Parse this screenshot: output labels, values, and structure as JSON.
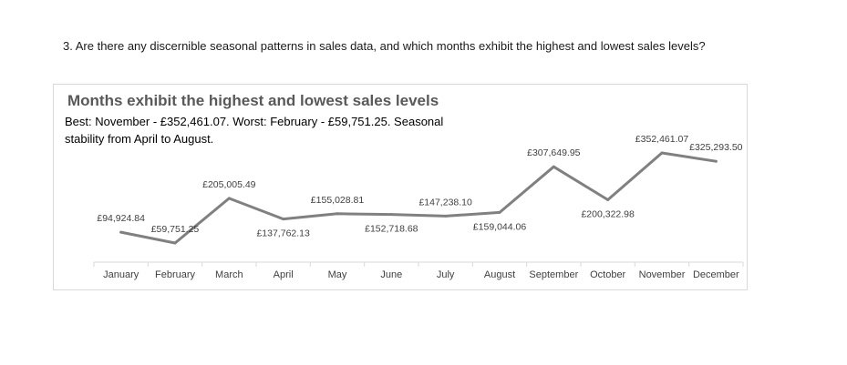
{
  "question": "3. Are there any discernible seasonal patterns in sales data, and which months exhibit the highest and lowest sales levels?",
  "chart_data": {
    "type": "line",
    "title": "Months exhibit the highest and lowest sales levels",
    "subtitle": "Best: November - £352,461.07. Worst: February - £59,751.25. Seasonal stability from April to August.",
    "categories": [
      "January",
      "February",
      "March",
      "April",
      "May",
      "June",
      "July",
      "August",
      "September",
      "October",
      "November",
      "December"
    ],
    "values": [
      94924.84,
      59751.25,
      205005.49,
      137762.13,
      155028.81,
      152718.68,
      147238.1,
      159044.06,
      307649.95,
      200322.98,
      352461.07,
      325293.5
    ],
    "data_labels": [
      "£94,924.84",
      "£59,751.25",
      "£205,005.49",
      "£137,762.13",
      "£155,028.81",
      "£152,718.68",
      "£147,238.10",
      "£159,044.06",
      "£307,649.95",
      "£200,322.98",
      "£352,461.07",
      "£325,293.50"
    ],
    "label_positions": [
      "above",
      "above",
      "above",
      "below",
      "above",
      "below",
      "above",
      "below",
      "above",
      "below",
      "above",
      "above"
    ],
    "line_color": "#808080",
    "axis_color": "#d9d9d9",
    "label_color": "#404040",
    "grid": false,
    "legend": "none"
  }
}
